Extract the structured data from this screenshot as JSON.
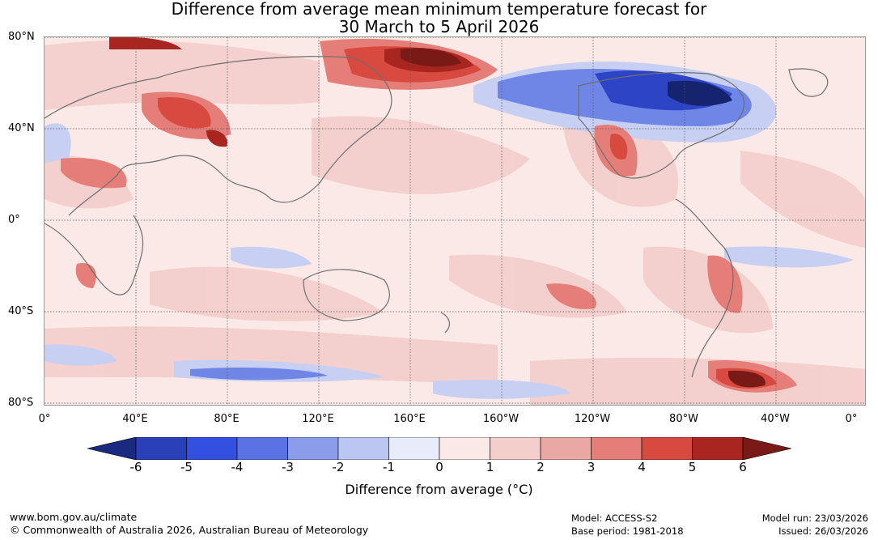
{
  "title": {
    "line1": "Difference from average mean minimum temperature forecast for",
    "line2": "30 March to 5 April 2026"
  },
  "map": {
    "lat_labels": [
      "80°N",
      "40°N",
      "0°",
      "40°S",
      "80°S"
    ],
    "lon_labels": [
      "0°",
      "40°E",
      "80°E",
      "120°E",
      "160°E",
      "160°W",
      "120°W",
      "80°W",
      "40°W",
      "0°"
    ],
    "colors": {
      "land_outline": "#6e6e6e",
      "grid": "#555555"
    }
  },
  "colorbar": {
    "label": "Difference from average (°C)",
    "ticks": [
      "-6",
      "-5",
      "-4",
      "-3",
      "-2",
      "-1",
      "0",
      "1",
      "2",
      "3",
      "4",
      "5",
      "6"
    ],
    "colors": [
      "#1a2a80",
      "#2a40b8",
      "#3450e0",
      "#5a72e4",
      "#8a9cea",
      "#bcc6f2",
      "#e8ecfa",
      "#fbe9e7",
      "#f3cfcc",
      "#eaa8a4",
      "#e57e78",
      "#d84a40",
      "#a8261f",
      "#7a1a16"
    ]
  },
  "footer": {
    "url": "www.bom.gov.au/climate",
    "copyright": "© Commonwealth of Australia 2026, Australian Bureau of Meteorology",
    "model": "Model: ACCESS-S2",
    "base_period": "Base period: 1981-2018",
    "model_run": "Model run: 23/03/2026",
    "issued": "Issued: 26/03/2026"
  }
}
